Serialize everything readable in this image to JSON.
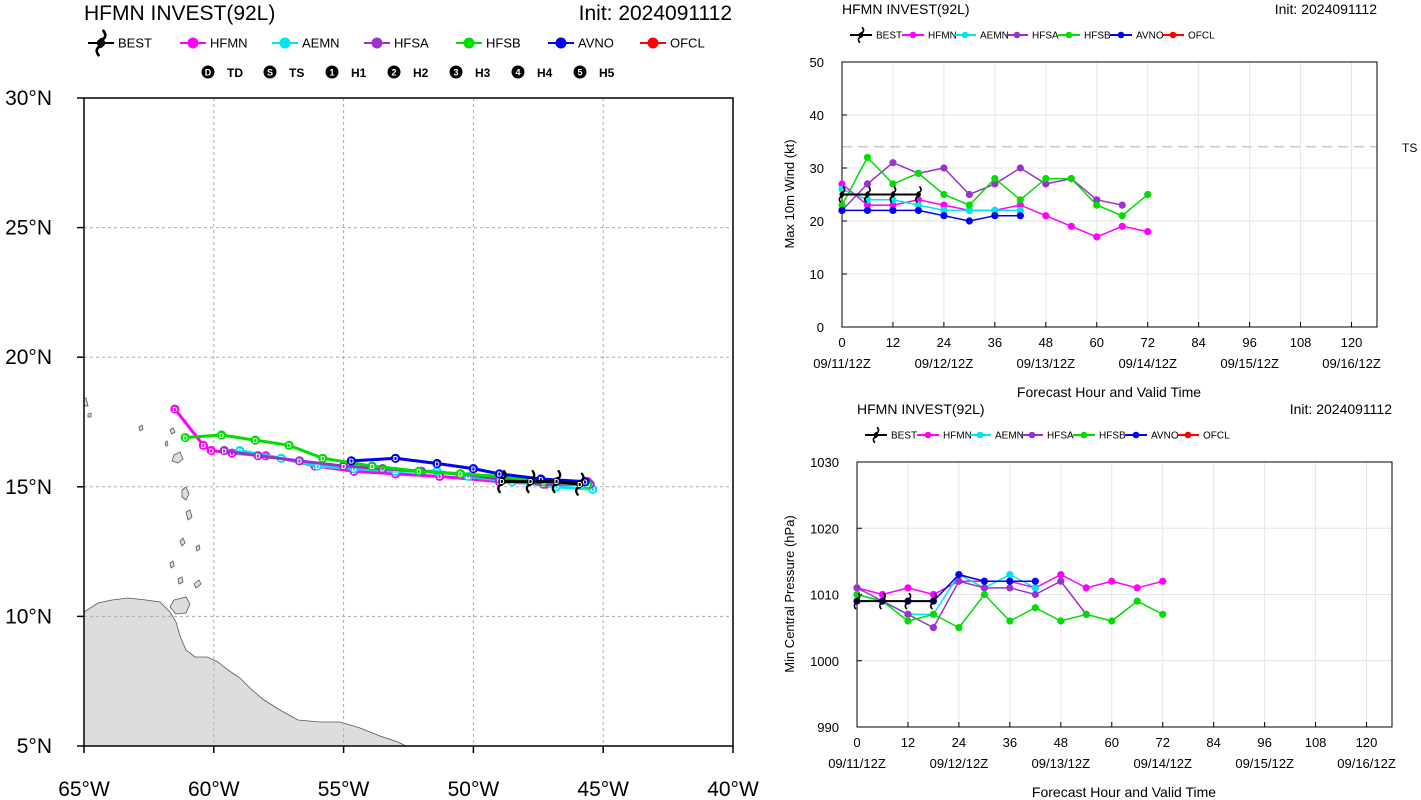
{
  "models": [
    {
      "name": "BEST",
      "color": "#000000"
    },
    {
      "name": "HFMN",
      "color": "#ff00ff"
    },
    {
      "name": "AEMN",
      "color": "#00e5ee"
    },
    {
      "name": "HFSA",
      "color": "#9a32cd"
    },
    {
      "name": "HFSB",
      "color": "#00dd00"
    },
    {
      "name": "AVNO",
      "color": "#0000ee"
    },
    {
      "name": "OFCL",
      "color": "#ff0000"
    }
  ],
  "chart_data": [
    {
      "type": "scatter",
      "title": "HFMN INVEST(92L)",
      "init": "Init: 2024091112",
      "intensity_legend": [
        {
          "symbol": "D",
          "label": "TD"
        },
        {
          "symbol": "S",
          "label": "TS"
        },
        {
          "symbol": "1",
          "label": "H1"
        },
        {
          "symbol": "2",
          "label": "H2"
        },
        {
          "symbol": "3",
          "label": "H3"
        },
        {
          "symbol": "4",
          "label": "H4"
        },
        {
          "symbol": "5",
          "label": "H5"
        }
      ],
      "xlim": [
        -65,
        -40
      ],
      "ylim": [
        5,
        30
      ],
      "xticks": [
        -65,
        -60,
        -55,
        -50,
        -45,
        -40
      ],
      "yticks": [
        5,
        10,
        15,
        20,
        25,
        30
      ],
      "xtick_labels": [
        "65°W",
        "60°W",
        "55°W",
        "50°W",
        "45°W",
        "40°W"
      ],
      "ytick_labels": [
        "5°N",
        "10°N",
        "15°N",
        "20°N",
        "25°N",
        "30°N"
      ],
      "grid": true,
      "series": [
        {
          "name": "HFMN",
          "lon": [
            -45.6,
            -47.2,
            -49.0,
            -51.3,
            -53.0,
            -54.6,
            -56.1,
            -57.4,
            -58.0,
            -59.3,
            -60.1,
            -60.4,
            -61.5
          ],
          "lat": [
            15.2,
            15.1,
            15.2,
            15.4,
            15.5,
            15.6,
            15.8,
            16.1,
            16.2,
            16.3,
            16.4,
            16.6,
            18.0
          ],
          "symbols": [
            "D",
            "D",
            "D",
            "D",
            "D",
            "D",
            "D",
            "D",
            "D",
            "D",
            "D",
            "D",
            "D"
          ]
        },
        {
          "name": "AEMN",
          "lon": [
            -45.4,
            -46.8,
            -48.5,
            -50.2,
            -51.4,
            -53.0,
            -54.6,
            -56.0,
            -57.4,
            -59.0
          ],
          "lat": [
            14.9,
            15.0,
            15.2,
            15.4,
            15.6,
            15.6,
            15.7,
            15.8,
            16.1,
            16.4
          ],
          "symbols": [
            "D",
            "D",
            "D",
            "D",
            "D",
            "D",
            "D",
            "D",
            "D",
            "D"
          ]
        },
        {
          "name": "HFSA",
          "lon": [
            -45.5,
            -47.3,
            -49.0,
            -50.5,
            -52.0,
            -53.5,
            -55.0,
            -56.7,
            -58.3,
            -59.6
          ],
          "lat": [
            15.1,
            15.1,
            15.3,
            15.5,
            15.6,
            15.7,
            15.8,
            16.0,
            16.2,
            16.4
          ],
          "symbols": [
            "D",
            "D",
            "D",
            "D",
            "D",
            "D",
            "D",
            "D",
            "D",
            "D"
          ]
        },
        {
          "name": "HFSB",
          "lon": [
            -45.6,
            -47.3,
            -48.9,
            -50.5,
            -52.1,
            -53.9,
            -55.8,
            -57.1,
            -58.4,
            -59.7,
            -61.1
          ],
          "lat": [
            15.1,
            15.2,
            15.4,
            15.5,
            15.6,
            15.8,
            16.1,
            16.6,
            16.8,
            17.0,
            16.9
          ],
          "symbols": [
            "D",
            "D",
            "D",
            "D",
            "D",
            "D",
            "D",
            "D",
            "D",
            "D",
            "D"
          ]
        },
        {
          "name": "AVNO",
          "lon": [
            -45.7,
            -47.4,
            -49.0,
            -50.0,
            -51.4,
            -53.0,
            -54.7
          ],
          "lat": [
            15.2,
            15.3,
            15.5,
            15.7,
            15.9,
            16.1,
            16.0
          ],
          "symbols": [
            "D",
            "D",
            "D",
            "D",
            "D",
            "D",
            "D"
          ]
        },
        {
          "name": "BEST",
          "lon": [
            -45.9,
            -46.8,
            -47.8,
            -48.9
          ],
          "lat": [
            15.1,
            15.2,
            15.2,
            15.2
          ],
          "symbols": [
            "D",
            "D",
            "D",
            "D"
          ]
        }
      ]
    },
    {
      "type": "line",
      "title": "HFMN INVEST(92L)",
      "init": "Init: 2024091112",
      "xlabel": "Forecast Hour and Valid Time",
      "ylabel": "Max 10m Wind (kt)",
      "xlim": [
        0,
        126
      ],
      "ylim": [
        0,
        50
      ],
      "xticks": [
        0,
        12,
        24,
        36,
        48,
        60,
        72,
        84,
        96,
        108,
        120
      ],
      "yticks": [
        0,
        10,
        20,
        30,
        40,
        50
      ],
      "valid_labels": [
        {
          "x": 0,
          "label": "09/11/12Z"
        },
        {
          "x": 24,
          "label": "09/12/12Z"
        },
        {
          "x": 48,
          "label": "09/13/12Z"
        },
        {
          "x": 72,
          "label": "09/14/12Z"
        },
        {
          "x": 96,
          "label": "09/15/12Z"
        },
        {
          "x": 120,
          "label": "09/16/12Z"
        }
      ],
      "threshold": {
        "value": 34,
        "label": "TS"
      },
      "grid": true,
      "series": [
        {
          "name": "HFMN",
          "x": [
            0,
            6,
            12,
            18,
            24,
            30,
            36,
            42,
            48,
            54,
            60,
            66,
            72
          ],
          "y": [
            27,
            23,
            23,
            24,
            23,
            22,
            22,
            23,
            21,
            19,
            17,
            19,
            18
          ]
        },
        {
          "name": "AEMN",
          "x": [
            0,
            6,
            12,
            18,
            24,
            30,
            36,
            42
          ],
          "y": [
            26,
            24,
            24,
            23,
            22,
            22,
            22,
            22
          ]
        },
        {
          "name": "HFSA",
          "x": [
            0,
            6,
            12,
            18,
            24,
            30,
            36,
            42,
            48,
            54,
            60,
            66
          ],
          "y": [
            22,
            27,
            31,
            29,
            30,
            25,
            27,
            30,
            27,
            28,
            24,
            23
          ]
        },
        {
          "name": "HFSB",
          "x": [
            0,
            6,
            12,
            18,
            24,
            30,
            36,
            42,
            48,
            54,
            60,
            66,
            72
          ],
          "y": [
            23,
            32,
            27,
            29,
            25,
            23,
            28,
            24,
            28,
            28,
            23,
            21,
            25
          ]
        },
        {
          "name": "AVNO",
          "x": [
            0,
            6,
            12,
            18,
            24,
            30,
            36,
            42
          ],
          "y": [
            22,
            22,
            22,
            22,
            21,
            20,
            21,
            21
          ]
        },
        {
          "name": "BEST",
          "x": [
            0,
            6,
            12,
            18
          ],
          "y": [
            25,
            25,
            25,
            25
          ]
        }
      ]
    },
    {
      "type": "line",
      "title": "HFMN INVEST(92L)",
      "init": "Init: 2024091112",
      "xlabel": "Forecast Hour and Valid Time",
      "ylabel": "Min Central Pressure (hPa)",
      "xlim": [
        0,
        126
      ],
      "ylim": [
        990,
        1030
      ],
      "xticks": [
        0,
        12,
        24,
        36,
        48,
        60,
        72,
        84,
        96,
        108,
        120
      ],
      "yticks": [
        990,
        1000,
        1010,
        1020,
        1030
      ],
      "valid_labels": [
        {
          "x": 0,
          "label": "09/11/12Z"
        },
        {
          "x": 24,
          "label": "09/12/12Z"
        },
        {
          "x": 48,
          "label": "09/13/12Z"
        },
        {
          "x": 72,
          "label": "09/14/12Z"
        },
        {
          "x": 96,
          "label": "09/15/12Z"
        },
        {
          "x": 120,
          "label": "09/16/12Z"
        }
      ],
      "grid": true,
      "series": [
        {
          "name": "HFMN",
          "x": [
            0,
            6,
            12,
            18,
            24,
            30,
            36,
            42,
            48,
            54,
            60,
            66,
            72
          ],
          "y": [
            1011,
            1010,
            1011,
            1010,
            1012,
            1012,
            1012,
            1011,
            1013,
            1011,
            1012,
            1011,
            1012
          ]
        },
        {
          "name": "AEMN",
          "x": [
            0,
            6,
            12,
            18,
            24,
            30,
            36,
            42
          ],
          "y": [
            1010,
            1009,
            1007,
            1007,
            1013,
            1011,
            1013,
            1011
          ]
        },
        {
          "name": "HFSA",
          "x": [
            0,
            6,
            12,
            18,
            24,
            30,
            36,
            42,
            48,
            54
          ],
          "y": [
            1011,
            1009,
            1007,
            1005,
            1012,
            1011,
            1011,
            1010,
            1012,
            1007
          ]
        },
        {
          "name": "HFSB",
          "x": [
            0,
            6,
            12,
            18,
            24,
            30,
            36,
            42,
            48,
            54,
            60,
            66,
            72
          ],
          "y": [
            1010,
            1009,
            1006,
            1007,
            1005,
            1010,
            1006,
            1008,
            1006,
            1007,
            1006,
            1009,
            1007
          ]
        },
        {
          "name": "AVNO",
          "x": [
            0,
            6,
            12,
            18,
            24,
            30,
            36,
            42
          ],
          "y": [
            1009,
            1009,
            1009,
            1009,
            1013,
            1012,
            1012,
            1012
          ]
        },
        {
          "name": "BEST",
          "x": [
            0,
            6,
            12,
            18
          ],
          "y": [
            1009,
            1009,
            1009,
            1009
          ]
        }
      ]
    }
  ]
}
